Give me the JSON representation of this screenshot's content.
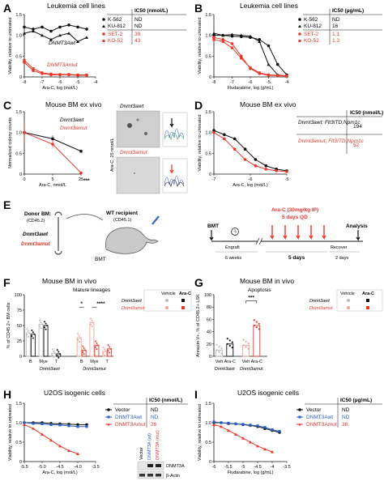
{
  "colors": {
    "black": "#111111",
    "red": "#e8372b",
    "blue": "#2b5fc4",
    "lightred": "#f0a39c",
    "gray": "#888888"
  },
  "panels": {
    "A": {
      "letter": "A",
      "title": "Leukemia cell lines",
      "ic50_header": "IC50 (nmol/L)",
      "legend": [
        {
          "name": "K-562",
          "ic50": "ND"
        },
        {
          "name": "KU-812",
          "ic50": "ND"
        },
        {
          "name": "SET-2",
          "ic50": "39"
        },
        {
          "name": "KO-52",
          "ic50": "43"
        }
      ],
      "label_wt": "DNMT3Awt",
      "label_mut": "DNMT3Amut",
      "ylabel": "Viability, relative to untreated",
      "xlabel": "Ara-C, log (mol/L)"
    },
    "B": {
      "letter": "B",
      "title": "Leukemia cell lines",
      "ic50_header": "IC50 (µg/mL)",
      "legend": [
        {
          "name": "K-562",
          "ic50": "ND"
        },
        {
          "name": "KU-812",
          "ic50": "16"
        },
        {
          "name": "SET-2",
          "ic50": "1.1"
        },
        {
          "name": "KO-52",
          "ic50": "1.3"
        }
      ],
      "ylabel": "Viability, relative to untreated",
      "xlabel": "Fludarabine, log (g/mL)"
    },
    "C": {
      "letter": "C",
      "title": "Mouse BM ex vivo",
      "legend_wt": "Dnmt3awt",
      "legend_mut": "Dnmt3amut",
      "ylabel": "Normalized colony counts",
      "xlabel": "Ara-C, nmol/L",
      "sig": "***",
      "photo_wt": "Dnmt3awt",
      "photo_mut": "Dnmt3amut",
      "photo_side": "Ara-C, 25 nmol/L"
    },
    "D": {
      "letter": "D",
      "title": "Mouse BM ex vivo",
      "ic50_header": "IC50 (nmol/L)",
      "legend": [
        {
          "name": "Dnmt3awt; Flt3ITD;Npm1c",
          "ic50": "194"
        },
        {
          "name": "Dnmt3amut; Flt3ITD;Npm1c",
          "ic50": "52"
        }
      ],
      "ylabel": "Viability, relative to untreated",
      "xlabel": "Ara-C, log (mol/L)"
    },
    "E": {
      "letter": "E",
      "donor": "Donor BM:",
      "donor_cd": "(CD45.2)",
      "recipient": "WT recipient",
      "recipient_cd": "(CD45.1)",
      "wt": "Dnmt3awt",
      "mut": "Dnmt3amut",
      "bmt": "BMT",
      "timeline": {
        "bmt": "BMT",
        "drug": "Ara-C (30mg/kg IP)",
        "days": "5 days QD",
        "analysis": "Analysis",
        "engraft": "Engraft",
        "recover": "Recover",
        "weeks": "6 weeks",
        "d5": "5 days",
        "d2": "2 days"
      }
    },
    "F": {
      "letter": "F",
      "title": "Mouse BM in vivo",
      "subtitle": "Mature lineages",
      "ylabel": "% of CD45.2+ BM cells",
      "groups": [
        "Dnmt3awt",
        "Dnmt3amut"
      ],
      "cats": [
        "B",
        "Mye",
        "T"
      ],
      "sig1": "*",
      "sig2": "****",
      "legend_head": [
        "Vehicle",
        "Ara-C"
      ],
      "legend_rows": [
        "Dnmt3awt",
        "Dnmt3amut"
      ]
    },
    "G": {
      "letter": "G",
      "title": "Mouse BM in vivo",
      "subtitle": "Apoptosis",
      "ylabel": "Annexin V+, % of CD45.2+ LSK",
      "cats": [
        "Veh",
        "Ara-C",
        "Veh",
        "Ara-C"
      ],
      "groups": [
        "Dnmt3awt",
        "Dnmt3amut"
      ],
      "sig": "***",
      "legend_head": [
        "Vehicle",
        "Ara-C"
      ],
      "legend_rows": [
        "Dnmt3awt",
        "Dnmt3amut"
      ]
    },
    "H": {
      "letter": "H",
      "title": "U2OS isogenic cells",
      "ic50_header": "IC50 (nmol/L)",
      "legend": [
        {
          "name": "Vector",
          "ic50": "ND"
        },
        {
          "name": "DNMT3Awt",
          "ic50": "ND"
        },
        {
          "name": "DNMT3Amut",
          "ic50": "26"
        }
      ],
      "ylabel": "Viability, relative to untreated",
      "xlabel": "Ara-C, log (mol/L)",
      "blot_cols": [
        "Vector",
        "DNMT3A (wt)",
        "DNMT3A (mut)"
      ],
      "blot_rows": [
        "DNMT3A",
        "β-Actin"
      ]
    },
    "I": {
      "letter": "I",
      "title": "U2OS isogenic cells",
      "ic50_header": "IC50 (µg/mL)",
      "legend": [
        {
          "name": "Vector",
          "ic50": "ND"
        },
        {
          "name": "DNMT3Awt",
          "ic50": "ND"
        },
        {
          "name": "DNMT3Amut",
          "ic50": "38"
        }
      ],
      "ylabel": "Viability, relative to untreated",
      "xlabel": "Fludarabine, log (g/mL)"
    }
  },
  "chart_data": [
    {
      "panel": "A",
      "type": "line",
      "xlim": [
        -8,
        -4
      ],
      "ylim": [
        0,
        1.5
      ],
      "xticks": [
        "-8",
        "-7",
        "-6",
        "-5",
        "-4"
      ],
      "yticks": [
        "0",
        "0.5",
        "1.0",
        "1.5"
      ],
      "series": [
        {
          "name": "K-562",
          "x": [
            -8,
            -7.5,
            -7,
            -6.5,
            -6,
            -5.5,
            -5,
            -4.5
          ],
          "y": [
            1.2,
            1.15,
            1.2,
            1.1,
            1.2,
            1.25,
            1.2,
            1.15
          ]
        },
        {
          "name": "KU-812",
          "x": [
            -8,
            -7.5,
            -7,
            -6.5,
            -6,
            -5.5,
            -5,
            -4.5
          ],
          "y": [
            1.05,
            1.1,
            1.0,
            0.9,
            1.0,
            1.05,
            0.85,
            0.95
          ]
        },
        {
          "name": "SET-2",
          "x": [
            -8,
            -7.5,
            -7,
            -6.5,
            -6,
            -5.5,
            -5,
            -4.5
          ],
          "y": [
            0.35,
            0.15,
            0.08,
            0.05,
            0.05,
            0.05,
            0.04,
            0.04
          ]
        },
        {
          "name": "KO-52",
          "x": [
            -8,
            -7.5,
            -7,
            -6.5,
            -6,
            -5.5,
            -5,
            -4.5
          ],
          "y": [
            0.4,
            0.2,
            0.1,
            0.07,
            0.06,
            0.06,
            0.05,
            0.05
          ]
        }
      ]
    },
    {
      "panel": "B",
      "type": "line",
      "xlim": [
        -8,
        -4
      ],
      "ylim": [
        0,
        1.5
      ],
      "xticks": [
        "-8",
        "-7",
        "-6",
        "-5",
        "-4"
      ],
      "yticks": [
        "0",
        "0.5",
        "1.0",
        "1.5"
      ],
      "series": [
        {
          "name": "K-562",
          "x": [
            -8,
            -7.5,
            -7,
            -6.5,
            -6,
            -5.5,
            -5,
            -4.5,
            -4
          ],
          "y": [
            1.0,
            1.0,
            0.98,
            0.97,
            0.95,
            0.9,
            0.75,
            0.3,
            0.05
          ]
        },
        {
          "name": "KU-812",
          "x": [
            -8,
            -7.5,
            -7,
            -6.5,
            -6,
            -5.5,
            -5,
            -4.5,
            -4
          ],
          "y": [
            1.05,
            1.0,
            1.02,
            1.0,
            0.98,
            0.85,
            0.3,
            0.05,
            0.02
          ]
        },
        {
          "name": "SET-2",
          "x": [
            -8,
            -7.5,
            -7,
            -6.5,
            -6,
            -5.5,
            -5,
            -4.5,
            -4
          ],
          "y": [
            0.95,
            0.9,
            0.8,
            0.5,
            0.2,
            0.08,
            0.04,
            0.03,
            0.02
          ]
        },
        {
          "name": "KO-52",
          "x": [
            -8,
            -7.5,
            -7,
            -6.5,
            -6,
            -5.5,
            -5,
            -4.5,
            -4
          ],
          "y": [
            0.9,
            0.85,
            0.7,
            0.45,
            0.22,
            0.1,
            0.05,
            0.04,
            0.03
          ]
        }
      ]
    },
    {
      "panel": "C",
      "type": "line",
      "xlim": [
        0,
        25
      ],
      "ylim": [
        0,
        1.5
      ],
      "xticks": [
        "0",
        "5",
        "25"
      ],
      "yticks": [
        "0",
        "0.5",
        "1.0",
        "1.5"
      ],
      "series": [
        {
          "name": "Dnmt3awt",
          "x": [
            0,
            5,
            25
          ],
          "y": [
            1.0,
            0.85,
            0.55
          ],
          "err": [
            0.2,
            0.08,
            0.04
          ]
        },
        {
          "name": "Dnmt3amut",
          "x": [
            0,
            5,
            25
          ],
          "y": [
            1.0,
            0.72,
            0.03
          ],
          "err": [
            0.25,
            0.08,
            0.02
          ]
        }
      ]
    },
    {
      "panel": "D",
      "type": "line",
      "xlim": [
        -8,
        -4.5
      ],
      "ylim": [
        0,
        1.5
      ],
      "xticks": [
        "-7",
        "-6",
        "-5"
      ],
      "yticks": [
        "0",
        "0.5",
        "1.0",
        "1.5"
      ],
      "series": [
        {
          "name": "Dnmt3awt; Flt3ITD;Npm1c",
          "x": [
            -8,
            -7.5,
            -7,
            -6.5,
            -6,
            -5.5,
            -5,
            -4.5
          ],
          "y": [
            1.05,
            0.95,
            0.85,
            0.6,
            0.35,
            0.2,
            0.12,
            0.08
          ]
        },
        {
          "name": "Dnmt3amut; Flt3ITD;Npm1c",
          "x": [
            -8,
            -7.5,
            -7,
            -6.5,
            -6,
            -5.5,
            -5,
            -4.5
          ],
          "y": [
            1.0,
            0.85,
            0.6,
            0.35,
            0.2,
            0.12,
            0.08,
            0.06
          ]
        }
      ]
    },
    {
      "panel": "F",
      "type": "bar",
      "ylim": [
        0,
        100
      ],
      "yticks": [
        "0",
        "25",
        "50",
        "75",
        "100"
      ],
      "categories": [
        "B",
        "Mye",
        "T",
        "B",
        "Mye",
        "T"
      ],
      "series": [
        {
          "name": "Vehicle",
          "values": [
            38,
            52,
            5,
            30,
            55,
            8
          ]
        },
        {
          "name": "Ara-C",
          "values": [
            36,
            50,
            4,
            10,
            18,
            12
          ]
        }
      ]
    },
    {
      "panel": "G",
      "type": "bar",
      "ylim": [
        0,
        100
      ],
      "yticks": [
        "0",
        "20",
        "40",
        "60",
        "80",
        "100"
      ],
      "categories": [
        "Veh",
        "Ara-C",
        "Veh",
        "Ara-C"
      ],
      "series": [
        {
          "name": "Annexin V+",
          "values": [
            10,
            20,
            18,
            50
          ]
        }
      ]
    },
    {
      "panel": "H",
      "type": "line",
      "xlim": [
        -5.5,
        -3.5
      ],
      "ylim": [
        0,
        1.5
      ],
      "xticks": [
        "-5.5",
        "-5.0",
        "-4.5",
        "-4.0",
        "-3.5"
      ],
      "yticks": [
        "0",
        "0.5",
        "1.0",
        "1.5"
      ],
      "series": [
        {
          "name": "Vector",
          "x": [
            -5.5,
            -5.25,
            -5,
            -4.75,
            -4.5,
            -4.25,
            -4,
            -3.75
          ],
          "y": [
            1.0,
            1.0,
            1.0,
            0.98,
            0.97,
            0.96,
            0.95,
            0.95
          ]
        },
        {
          "name": "DNMT3Awt",
          "x": [
            -5.5,
            -5.25,
            -5,
            -4.75,
            -4.5,
            -4.25,
            -4,
            -3.75
          ],
          "y": [
            1.0,
            0.98,
            0.97,
            0.95,
            0.94,
            0.92,
            0.9,
            0.9
          ]
        },
        {
          "name": "DNMT3Amut",
          "x": [
            -5.5,
            -5.25,
            -5,
            -4.75,
            -4.5,
            -4.25,
            -4
          ],
          "y": [
            0.95,
            0.85,
            0.7,
            0.55,
            0.4,
            0.28,
            0.2
          ]
        }
      ]
    },
    {
      "panel": "I",
      "type": "line",
      "xlim": [
        -6,
        -3.5
      ],
      "ylim": [
        0,
        1.5
      ],
      "xticks": [
        "-6",
        "-5.5",
        "-5",
        "-4.5",
        "-4",
        "-3.5"
      ],
      "yticks": [
        "0",
        "0.5",
        "1.0",
        "1.5"
      ],
      "series": [
        {
          "name": "Vector",
          "x": [
            -6,
            -5.75,
            -5.5,
            -5.25,
            -5,
            -4.75,
            -4.5,
            -4.25,
            -4,
            -3.75
          ],
          "y": [
            1.0,
            1.0,
            0.98,
            0.97,
            0.95,
            0.93,
            0.9,
            0.85,
            0.8,
            0.75
          ]
        },
        {
          "name": "DNMT3Awt",
          "x": [
            -6,
            -5.75,
            -5.5,
            -5.25,
            -5,
            -4.75,
            -4.5,
            -4.25,
            -4,
            -3.75
          ],
          "y": [
            1.02,
            1.0,
            0.99,
            0.97,
            0.96,
            0.94,
            0.92,
            0.88,
            0.82,
            0.78
          ]
        },
        {
          "name": "DNMT3Amut",
          "x": [
            -6,
            -5.75,
            -5.5,
            -5.25,
            -5,
            -4.75,
            -4.5,
            -4.25,
            -4
          ],
          "y": [
            0.95,
            0.9,
            0.8,
            0.7,
            0.6,
            0.5,
            0.4,
            0.32,
            0.25
          ]
        }
      ]
    }
  ]
}
